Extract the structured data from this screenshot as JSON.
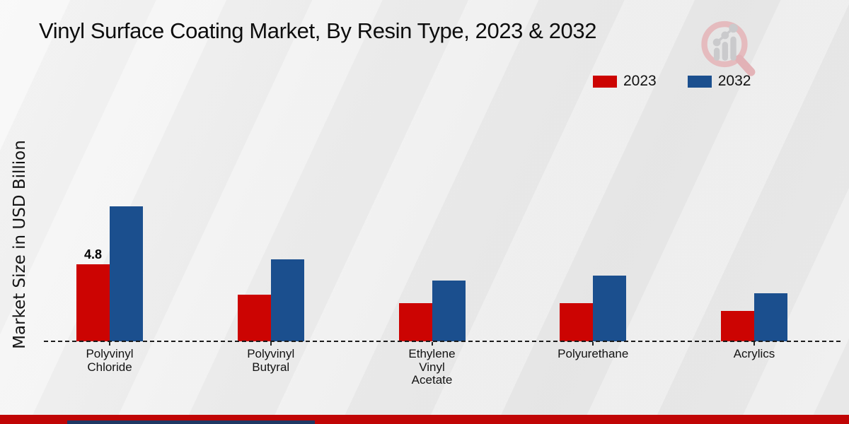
{
  "title": "Vinyl Surface Coating Market, By Resin Type, 2023 & 2032",
  "y_axis_label": "Market Size in USD Billion",
  "legend": {
    "items": [
      {
        "label": "2023",
        "color": "#cc0402"
      },
      {
        "label": "2032",
        "color": "#1b4f8e"
      }
    ]
  },
  "chart_data": {
    "type": "bar",
    "title": "Vinyl Surface Coating Market, By Resin Type, 2023 & 2032",
    "categories": [
      "Polyvinyl Chloride",
      "Polyvinyl Butyral",
      "Ethylene Vinyl Acetate",
      "Polyurethane",
      "Acrylics"
    ],
    "series": [
      {
        "name": "2023",
        "color": "#cc0402",
        "values": [
          4.8,
          2.9,
          2.4,
          2.4,
          1.9
        ]
      },
      {
        "name": "2032",
        "color": "#1b4f8e",
        "values": [
          8.4,
          5.1,
          3.8,
          4.1,
          3.0
        ]
      }
    ],
    "data_labels": [
      {
        "series": "2023",
        "category": "Polyvinyl Chloride",
        "text": "4.8"
      }
    ],
    "xlabel": "",
    "ylabel": "Market Size in USD Billion",
    "ylim": [
      0,
      10
    ],
    "grid": false,
    "baseline_style": "dashed",
    "legend_position": "top-right"
  },
  "footer": {
    "band_color": "#c00505",
    "accent_color": "#1f3864"
  },
  "logo": {
    "name": "magnifier-bar-chart-logo",
    "ring_color": "#e5b4b8",
    "bars_color": "#c6c6c8"
  }
}
